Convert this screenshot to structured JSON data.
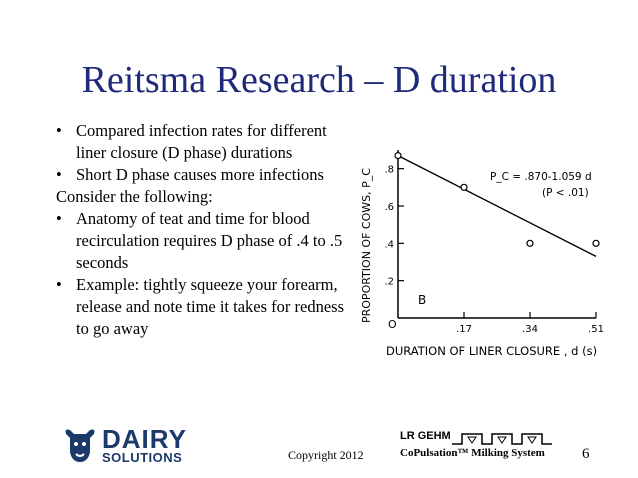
{
  "slide": {
    "title": "Reitsma Research – D duration",
    "bullets_top": [
      "Compared infection rates for different liner closure (D phase) durations",
      "Short D phase causes more infections"
    ],
    "consider": "Consider the following:",
    "bullets_bottom": [
      "Anatomy of teat and time for blood recirculation requires D phase of .4 to .5 seconds",
      "Example: tightly squeeze your forearm, release and note time it takes for redness to go away"
    ],
    "bullet_char": "•"
  },
  "chart_data": {
    "type": "scatter",
    "ylabel": "PROPORTION OF COWS, P_C",
    "xlabel": "DURATION OF LINER CLOSURE , d (s)",
    "x_ticks": [
      ".17",
      ".34",
      ".51"
    ],
    "y_ticks": [
      ".2",
      ".4",
      ".6",
      ".8"
    ],
    "origin_label": "O",
    "equation": "P_C = .870-1.059 d",
    "significance": "(P < .01)",
    "panel_label": "B",
    "xlim": [
      0,
      0.51
    ],
    "ylim": [
      0,
      0.9
    ],
    "points": [
      {
        "x": 0.0,
        "y": 0.87
      },
      {
        "x": 0.17,
        "y": 0.7
      },
      {
        "x": 0.34,
        "y": 0.4
      },
      {
        "x": 0.51,
        "y": 0.4
      }
    ],
    "regression": {
      "intercept": 0.87,
      "slope": -1.059,
      "x_end": 0.51
    }
  },
  "footer": {
    "logo_word_1": "DAIRY",
    "logo_word_2": "SOLUTIONS",
    "copyright": "Copyright 2012",
    "brand_top": "LR GEHM",
    "brand_bottom": "CoPulsation™ Milking System",
    "page_number": "6"
  }
}
